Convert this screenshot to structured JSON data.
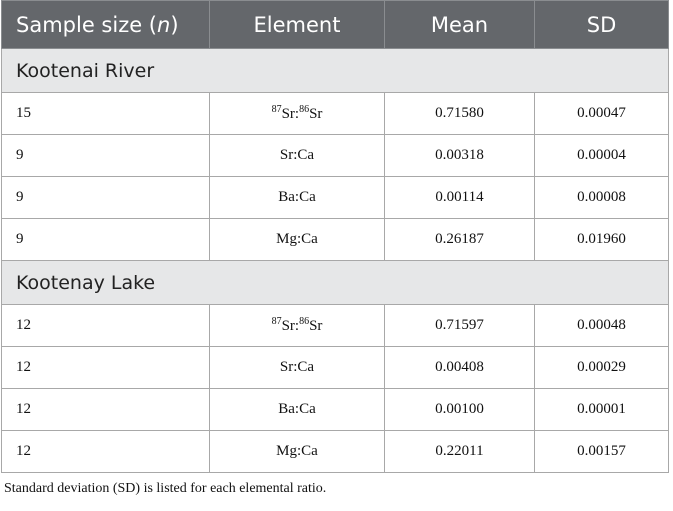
{
  "table": {
    "columns": [
      [
        "Sample size (",
        "n",
        ")"
      ],
      "Element",
      "Mean",
      "SD"
    ],
    "groups": [
      {
        "title": "Kootenai River",
        "rows": [
          [
            "15",
            [
              "87",
              "Sr:",
              "86",
              "Sr"
            ],
            "0.71580",
            "0.00047"
          ],
          [
            "9",
            "Sr:Ca",
            "0.00318",
            "0.00004"
          ],
          [
            "9",
            "Ba:Ca",
            "0.00114",
            "0.00008"
          ],
          [
            "9",
            "Mg:Ca",
            "0.26187",
            "0.01960"
          ]
        ]
      },
      {
        "title": "Kootenay Lake",
        "rows": [
          [
            "12",
            [
              "87",
              "Sr:",
              "86",
              "Sr"
            ],
            "0.71597",
            "0.00048"
          ],
          [
            "12",
            "Sr:Ca",
            "0.00408",
            "0.00029"
          ],
          [
            "12",
            "Ba:Ca",
            "0.00100",
            "0.00001"
          ],
          [
            "12",
            "Mg:Ca",
            "0.22011",
            "0.00157"
          ]
        ]
      }
    ]
  },
  "footnote": "Standard deviation (SD) is listed for each elemental ratio."
}
